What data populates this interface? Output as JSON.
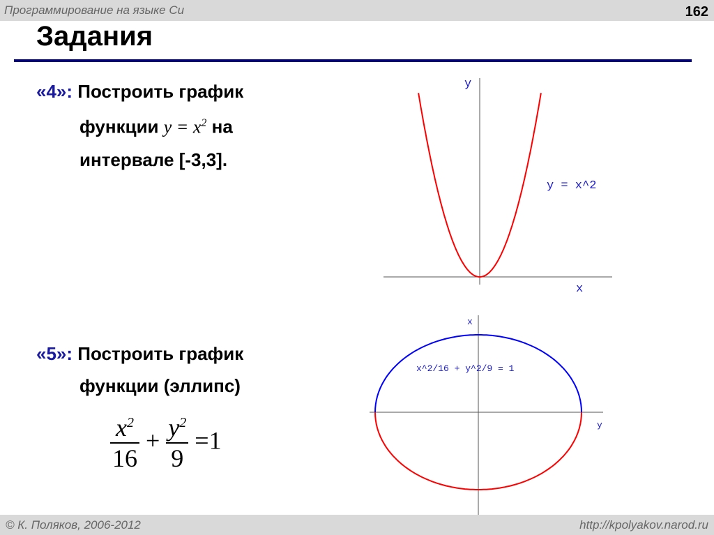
{
  "header": {
    "course": "Программирование на языке Си",
    "page": "162"
  },
  "title": "Задания",
  "tasks": [
    {
      "label": "«4»:",
      "line1": "Построить график",
      "line2_pre": "функции ",
      "formula": "y = x",
      "sup": "2",
      "line2_post": " на",
      "line3": "интервале [-3,3]."
    },
    {
      "label": "«5»:",
      "line1": "Построить график",
      "line2": "функции (эллипс)"
    }
  ],
  "ellipse_formula": {
    "x_num": "x",
    "x_exp": "2",
    "x_den": "16",
    "plus": "+",
    "y_num": "y",
    "y_exp": "2",
    "y_den": "9",
    "eq": "=",
    "rhs": "1"
  },
  "chart_data": [
    {
      "type": "line",
      "function": "y = x^2",
      "annotation": "y = x^2",
      "xlabel": "x",
      "ylabel": "y",
      "xlim": [
        -3,
        3
      ],
      "color": "#ff0000"
    },
    {
      "type": "line",
      "function": "x^2/16 + y^2/9 = 1",
      "annotation": "x^2/16 + y^2/9 = 1",
      "xlabel": "y",
      "ylabel": "x",
      "semi_axes": [
        4,
        3
      ],
      "upper_color": "#0000ff",
      "lower_color": "#ff0000"
    }
  ],
  "footer": {
    "author": "© К. Поляков, 2006-2012",
    "url": "http://kpolyakov.narod.ru"
  }
}
